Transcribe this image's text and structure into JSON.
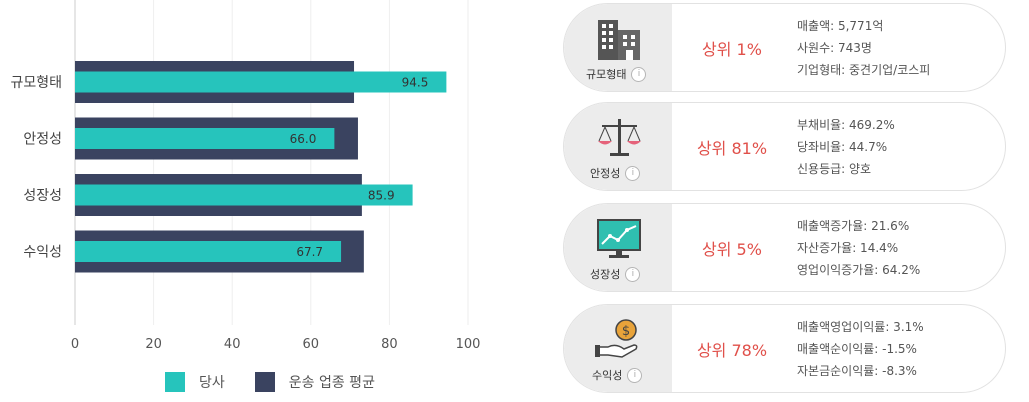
{
  "chart_data": {
    "type": "bar",
    "orientation": "horizontal",
    "categories": [
      "규모형태",
      "안정성",
      "성장성",
      "수익성"
    ],
    "series": [
      {
        "name": "당사",
        "values": [
          94.5,
          66.0,
          85.9,
          67.7
        ],
        "color": "#26c4bc",
        "labels": [
          "94.5",
          "66.0",
          "85.9",
          "67.7"
        ]
      },
      {
        "name": "운송 업종 평균",
        "values": [
          71,
          72,
          73,
          73.5
        ],
        "color": "#3a4360"
      }
    ],
    "xlim": [
      0,
      100
    ],
    "xticks": [
      "0",
      "20",
      "40",
      "60",
      "80",
      "100"
    ],
    "grid": true,
    "legend_position": "bottom"
  },
  "legend": {
    "company": "당사",
    "industry": "운송 업종 평균"
  },
  "cards": [
    {
      "icon": "building-icon",
      "caption": "규모형태",
      "rank": "상위 1%",
      "details": [
        "매출액: 5,771억",
        "사원수: 743명",
        "기업형태: 중견기업/코스피"
      ]
    },
    {
      "icon": "scale-icon",
      "caption": "안정성",
      "rank": "상위 81%",
      "details": [
        "부채비율: 469.2%",
        "당좌비율: 44.7%",
        "신용등급: 양호"
      ]
    },
    {
      "icon": "growth-chart-icon",
      "caption": "성장성",
      "rank": "상위 5%",
      "details": [
        "매출액증가율: 21.6%",
        "자산증가율: 14.4%",
        "영업이익증가율: 64.2%"
      ]
    },
    {
      "icon": "money-hand-icon",
      "caption": "수익성",
      "rank": "상위 78%",
      "details": [
        "매출액영업이익률: 3.1%",
        "매출액순이익률: -1.5%",
        "자본금순이익률: -8.3%"
      ]
    }
  ],
  "info_glyph": "i"
}
